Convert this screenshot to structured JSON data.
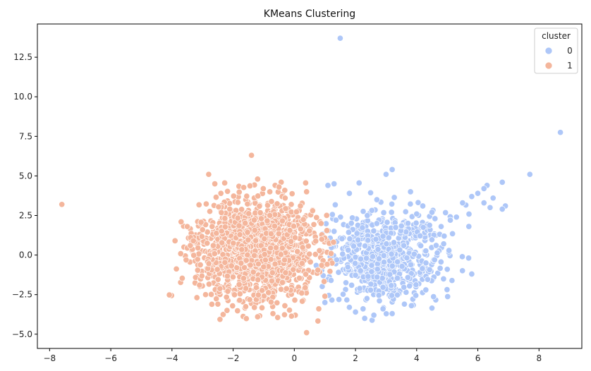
{
  "chart_data": {
    "type": "scatter",
    "title": "KMeans Clustering",
    "xlabel": "",
    "ylabel": "",
    "xlim": [
      -8.4,
      9.4
    ],
    "ylim": [
      -5.9,
      14.6
    ],
    "xticks": [
      -8,
      -6,
      -4,
      -2,
      0,
      2,
      4,
      6,
      8
    ],
    "yticks": [
      -5.0,
      -2.5,
      0.0,
      2.5,
      5.0,
      7.5,
      10.0,
      12.5
    ],
    "xtick_labels": [
      "−8",
      "−6",
      "−4",
      "−2",
      "0",
      "2",
      "4",
      "6",
      "8"
    ],
    "ytick_labels": [
      "−5.0",
      "−2.5",
      "0.0",
      "2.5",
      "5.0",
      "7.5",
      "10.0",
      "12.5"
    ],
    "grid": false,
    "legend": {
      "title": "cluster",
      "placement": "top-right",
      "entries": [
        {
          "label": "0",
          "color": "#aec7f8"
        },
        {
          "label": "1",
          "color": "#f4b69c"
        }
      ]
    },
    "series": [
      {
        "name": "0",
        "color": "#aec7f8",
        "cloud": {
          "center": [
            3.0,
            0.0
          ],
          "std": [
            0.9,
            1.35
          ],
          "count": 700,
          "x_min": 0.7
        },
        "points": [
          [
            1.5,
            13.7
          ],
          [
            8.7,
            7.75
          ],
          [
            7.7,
            5.1
          ],
          [
            6.9,
            3.1
          ],
          [
            6.8,
            2.9
          ],
          [
            6.4,
            3.0
          ],
          [
            6.3,
            4.4
          ],
          [
            6.2,
            4.2
          ],
          [
            6.0,
            3.9
          ],
          [
            5.8,
            3.7
          ],
          [
            5.5,
            3.3
          ],
          [
            5.3,
            2.4
          ],
          [
            5.8,
            -1.2
          ],
          [
            5.0,
            -0.9
          ],
          [
            4.8,
            1.8
          ],
          [
            4.5,
            2.7
          ],
          [
            4.2,
            3.1
          ],
          [
            3.8,
            4.0
          ],
          [
            3.2,
            5.4
          ],
          [
            3.0,
            5.1
          ],
          [
            2.7,
            3.5
          ],
          [
            1.3,
            4.5
          ],
          [
            1.1,
            4.4
          ],
          [
            1.8,
            3.9
          ],
          [
            2.3,
            -4.0
          ],
          [
            2.6,
            -3.8
          ],
          [
            3.2,
            -3.7
          ],
          [
            3.6,
            -3.1
          ],
          [
            1.8,
            -3.3
          ],
          [
            1.0,
            -3.0
          ],
          [
            1.2,
            -1.6
          ],
          [
            1.3,
            1.5
          ],
          [
            6.8,
            4.6
          ],
          [
            5.1,
            2.2
          ],
          [
            4.9,
            1.2
          ],
          [
            4.3,
            -2.2
          ],
          [
            2.0,
            -3.6
          ],
          [
            2.9,
            -3.4
          ],
          [
            4.0,
            2.6
          ],
          [
            4.6,
            2.3
          ],
          [
            6.5,
            3.6
          ],
          [
            6.2,
            3.3
          ]
        ]
      },
      {
        "name": "1",
        "color": "#f4b69c",
        "cloud": {
          "center": [
            -1.2,
            0.3
          ],
          "std": [
            0.95,
            1.55
          ],
          "count": 1500,
          "x_max": 1.3
        },
        "points": [
          [
            -7.6,
            3.2
          ],
          [
            -3.9,
            0.9
          ],
          [
            -3.7,
            2.1
          ],
          [
            -3.5,
            1.8
          ],
          [
            -3.4,
            0.6
          ],
          [
            -3.1,
            -1.9
          ],
          [
            -3.0,
            1.6
          ],
          [
            -2.8,
            5.1
          ],
          [
            -2.6,
            4.5
          ],
          [
            -2.4,
            3.9
          ],
          [
            -1.4,
            6.3
          ],
          [
            -1.2,
            4.8
          ],
          [
            -0.8,
            4.0
          ],
          [
            -0.5,
            4.3
          ],
          [
            0.4,
            4.0
          ],
          [
            0.2,
            3.1
          ],
          [
            -0.3,
            3.6
          ],
          [
            0.4,
            -4.9
          ],
          [
            -1.2,
            -3.9
          ],
          [
            -0.7,
            -3.7
          ],
          [
            -2.2,
            -3.5
          ],
          [
            -2.5,
            -3.1
          ],
          [
            0.8,
            -3.4
          ],
          [
            1.0,
            -2.6
          ],
          [
            0.9,
            1.0
          ],
          [
            1.2,
            0.1
          ],
          [
            -2.9,
            -2.5
          ],
          [
            -3.3,
            0.9
          ],
          [
            0.6,
            2.8
          ],
          [
            -0.1,
            3.2
          ]
        ]
      }
    ]
  }
}
